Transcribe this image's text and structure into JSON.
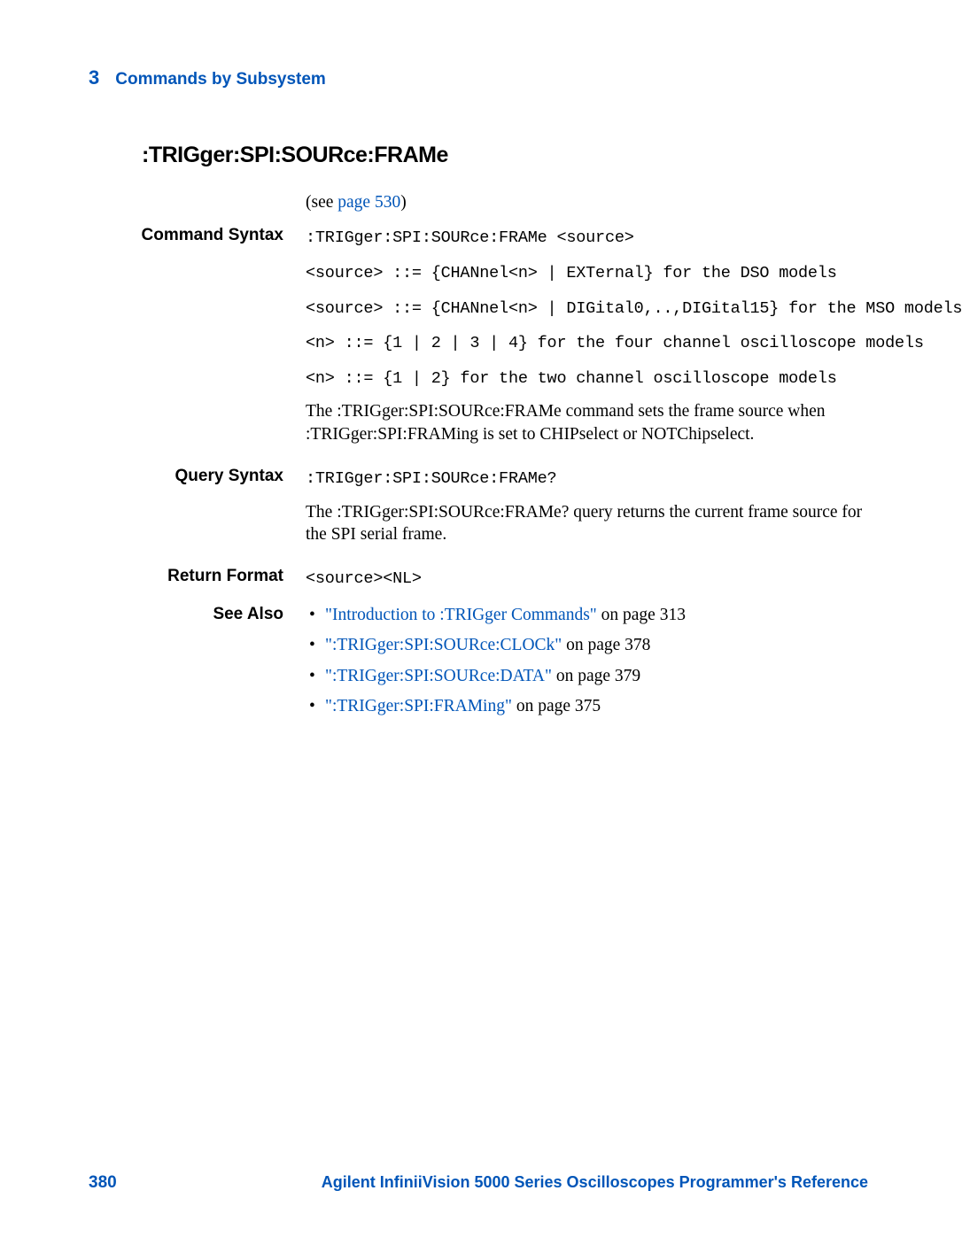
{
  "chapter": {
    "number": "3",
    "title": "Commands by Subsystem"
  },
  "heading": ":TRIGger:SPI:SOURce:FRAMe",
  "see_intro": {
    "prefix": "(see ",
    "link": "page 530",
    "suffix": ")"
  },
  "command_syntax": {
    "label": "Command Syntax",
    "lines": [
      ":TRIGger:SPI:SOURce:FRAMe <source>",
      "<source> ::= {CHANnel<n> | EXTernal} for the DSO models",
      "<source> ::= {CHANnel<n> | DIGital0,..,DIGital15} for the MSO models",
      "<n> ::= {1 | 2 | 3 | 4} for the four channel oscilloscope models",
      "<n> ::= {1 | 2} for the two channel oscilloscope models"
    ],
    "desc": "The :TRIGger:SPI:SOURce:FRAMe command sets the frame source when :TRIGger:SPI:FRAMing is set to CHIPselect or NOTChipselect."
  },
  "query_syntax": {
    "label": "Query Syntax",
    "code": ":TRIGger:SPI:SOURce:FRAMe?",
    "desc": "The :TRIGger:SPI:SOURce:FRAMe? query returns the current frame source for the SPI serial frame."
  },
  "return_format": {
    "label": "Return Format",
    "code": "<source><NL>"
  },
  "see_also": {
    "label": "See Also",
    "items": [
      {
        "link": "\"Introduction to :TRIGger Commands\"",
        "suffix": " on page 313"
      },
      {
        "link": "\":TRIGger:SPI:SOURce:CLOCk\"",
        "suffix": " on page 378"
      },
      {
        "link": "\":TRIGger:SPI:SOURce:DATA\"",
        "suffix": " on page 379"
      },
      {
        "link": "\":TRIGger:SPI:FRAMing\"",
        "suffix": " on page 375"
      }
    ]
  },
  "footer": {
    "page": "380",
    "title": "Agilent InfiniiVision 5000 Series Oscilloscopes Programmer's Reference"
  }
}
